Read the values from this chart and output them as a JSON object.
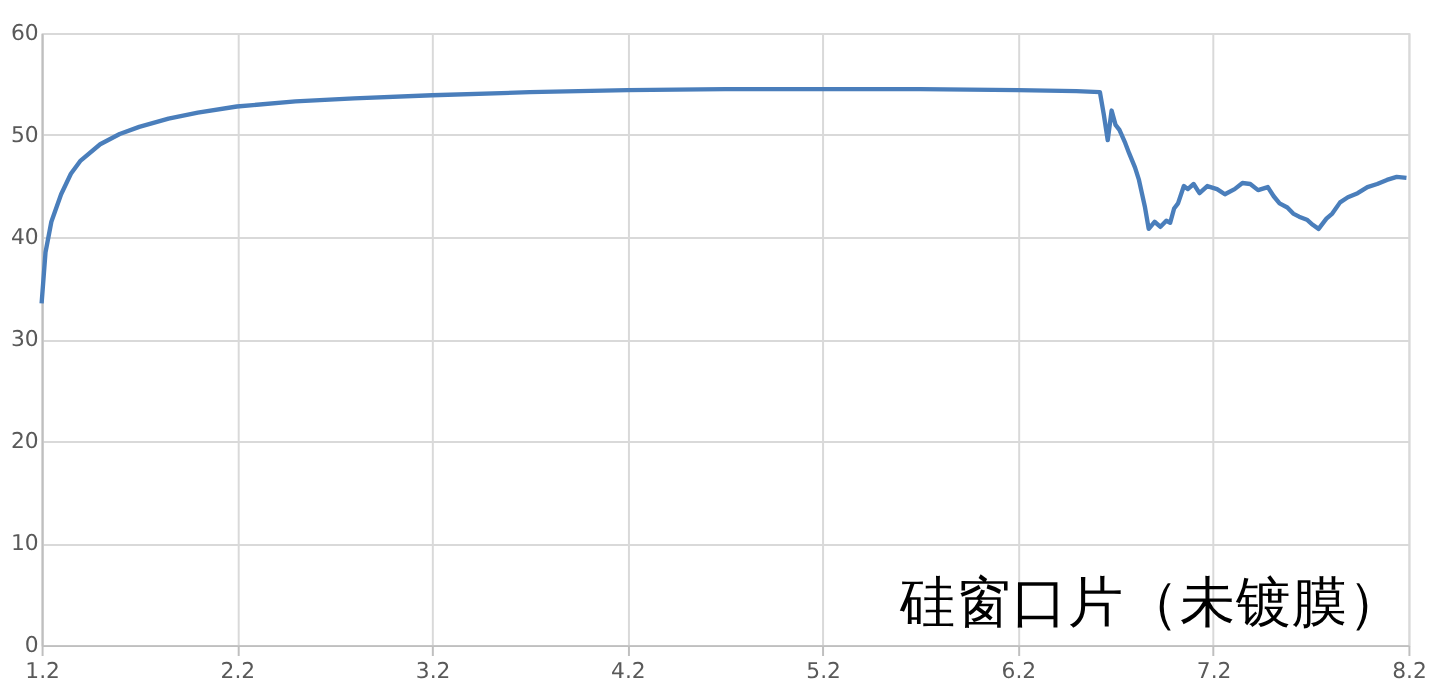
{
  "chart_data": {
    "type": "line",
    "x": [
      1.2,
      1.22,
      1.25,
      1.3,
      1.35,
      1.4,
      1.5,
      1.6,
      1.7,
      1.85,
      2.0,
      2.2,
      2.5,
      2.8,
      3.2,
      3.7,
      4.2,
      4.7,
      5.2,
      5.7,
      6.2,
      6.5,
      6.62,
      6.64,
      6.66,
      6.68,
      6.7,
      6.72,
      6.75,
      6.77,
      6.8,
      6.82,
      6.85,
      6.87,
      6.9,
      6.93,
      6.96,
      6.98,
      7.0,
      7.02,
      7.05,
      7.07,
      7.1,
      7.13,
      7.17,
      7.22,
      7.26,
      7.31,
      7.35,
      7.39,
      7.43,
      7.48,
      7.51,
      7.54,
      7.58,
      7.61,
      7.64,
      7.68,
      7.71,
      7.74,
      7.78,
      7.81,
      7.85,
      7.89,
      7.94,
      7.99,
      8.04,
      8.09,
      8.14,
      8.19
    ],
    "values": [
      33.5,
      38.5,
      41.5,
      44.2,
      46.2,
      47.5,
      49.1,
      50.1,
      50.8,
      51.6,
      52.2,
      52.8,
      53.3,
      53.6,
      53.9,
      54.2,
      54.4,
      54.5,
      54.5,
      54.5,
      54.4,
      54.3,
      54.2,
      52.0,
      49.5,
      52.4,
      51.0,
      50.5,
      49.2,
      48.2,
      46.8,
      45.6,
      43.0,
      40.8,
      41.5,
      41.0,
      41.6,
      41.4,
      42.8,
      43.3,
      45.0,
      44.7,
      45.2,
      44.3,
      45.0,
      44.7,
      44.2,
      44.7,
      45.3,
      45.2,
      44.6,
      44.9,
      44.0,
      43.3,
      42.9,
      42.3,
      42.0,
      41.7,
      41.2,
      40.8,
      41.8,
      42.3,
      43.4,
      43.9,
      44.3,
      44.9,
      45.2,
      45.6,
      45.9,
      45.8
    ],
    "color": "#4a7ebb",
    "xlim": [
      1.2,
      8.2
    ],
    "xticks": [
      1.2,
      2.2,
      3.2,
      4.2,
      5.2,
      6.2,
      7.2,
      8.2
    ],
    "ylim": [
      0,
      60
    ],
    "yticks": [
      0,
      10,
      20,
      30,
      40,
      50,
      60
    ],
    "grid": true,
    "annotations": [
      "硅窗口片（未镀膜）"
    ]
  }
}
